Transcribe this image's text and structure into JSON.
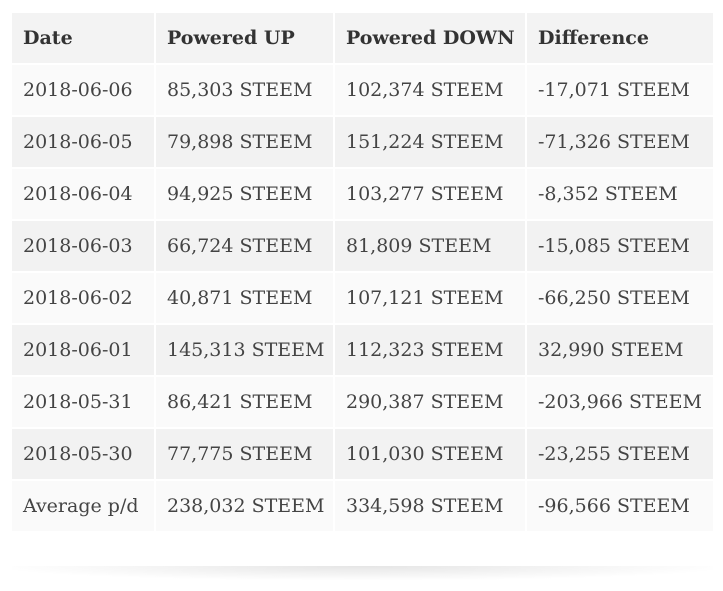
{
  "table": {
    "headers": [
      "Date",
      "Powered UP",
      "Powered DOWN",
      "Difference"
    ],
    "rows": [
      [
        "2018-06-06",
        "85,303 STEEM",
        "102,374 STEEM",
        "-17,071 STEEM"
      ],
      [
        "2018-06-05",
        "79,898 STEEM",
        "151,224 STEEM",
        "-71,326 STEEM"
      ],
      [
        "2018-06-04",
        "94,925 STEEM",
        "103,277 STEEM",
        "-8,352 STEEM"
      ],
      [
        "2018-06-03",
        "66,724 STEEM",
        "81,809 STEEM",
        "-15,085 STEEM"
      ],
      [
        "2018-06-02",
        "40,871 STEEM",
        "107,121 STEEM",
        "-66,250 STEEM"
      ],
      [
        "2018-06-01",
        "145,313 STEEM",
        "112,323 STEEM",
        "32,990 STEEM"
      ],
      [
        "2018-05-31",
        "86,421 STEEM",
        "290,387 STEEM",
        "-203,966 STEEM"
      ],
      [
        "2018-05-30",
        "77,775 STEEM",
        "101,030 STEEM",
        "-23,255 STEEM"
      ],
      [
        "Average p/d",
        "238,032 STEEM",
        "334,598 STEEM",
        "-96,566 STEEM"
      ]
    ]
  },
  "colors": {
    "header_bg": "#f3f3f3",
    "row_odd_bg": "#fafafa",
    "row_even_bg": "#f2f2f2",
    "text": "#444444"
  }
}
